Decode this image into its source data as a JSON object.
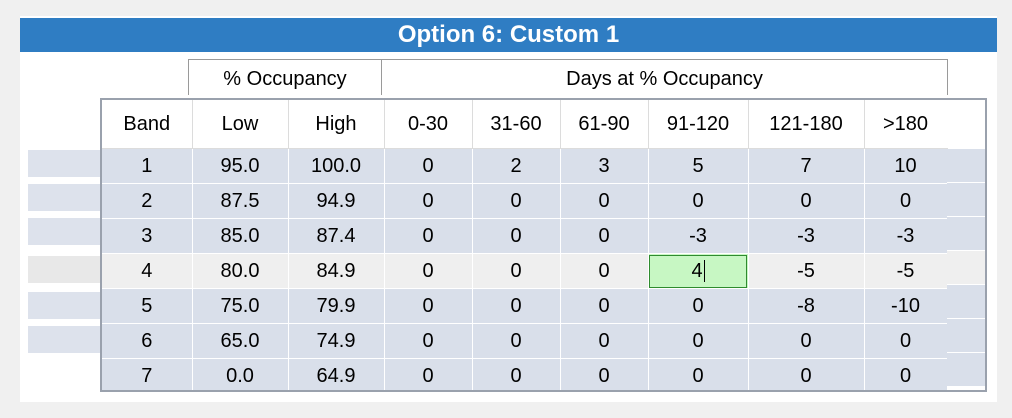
{
  "title": "Option 6: Custom  1",
  "groups": {
    "occupancy": "% Occupancy",
    "days": "Days at % Occupancy"
  },
  "columns": [
    "Band",
    "Low",
    "High",
    "0-30",
    "31-60",
    "61-90",
    "91-120",
    "121-180",
    ">180"
  ],
  "rows": [
    [
      "1",
      "95.0",
      "100.0",
      "0",
      "2",
      "3",
      "5",
      "7",
      "10"
    ],
    [
      "2",
      "87.5",
      "94.9",
      "0",
      "0",
      "0",
      "0",
      "0",
      "0"
    ],
    [
      "3",
      "85.0",
      "87.4",
      "0",
      "0",
      "0",
      "-3",
      "-3",
      "-3"
    ],
    [
      "4",
      "80.0",
      "84.9",
      "0",
      "0",
      "0",
      "4",
      "-5",
      "-5"
    ],
    [
      "5",
      "75.0",
      "79.9",
      "0",
      "0",
      "0",
      "0",
      "-8",
      "-10"
    ],
    [
      "6",
      "65.0",
      "74.9",
      "0",
      "0",
      "0",
      "0",
      "0",
      "0"
    ],
    [
      "7",
      "0.0",
      "64.9",
      "0",
      "0",
      "0",
      "0",
      "0",
      "0"
    ]
  ],
  "selected_row": 3,
  "editing_cell": {
    "row": 3,
    "col": 6
  },
  "colors": {
    "title_bar": "#2f7dc3",
    "row_bg": "#d9dfea",
    "selected_row_bg": "#efefef",
    "editing_cell_bg": "#c7f7c3"
  }
}
